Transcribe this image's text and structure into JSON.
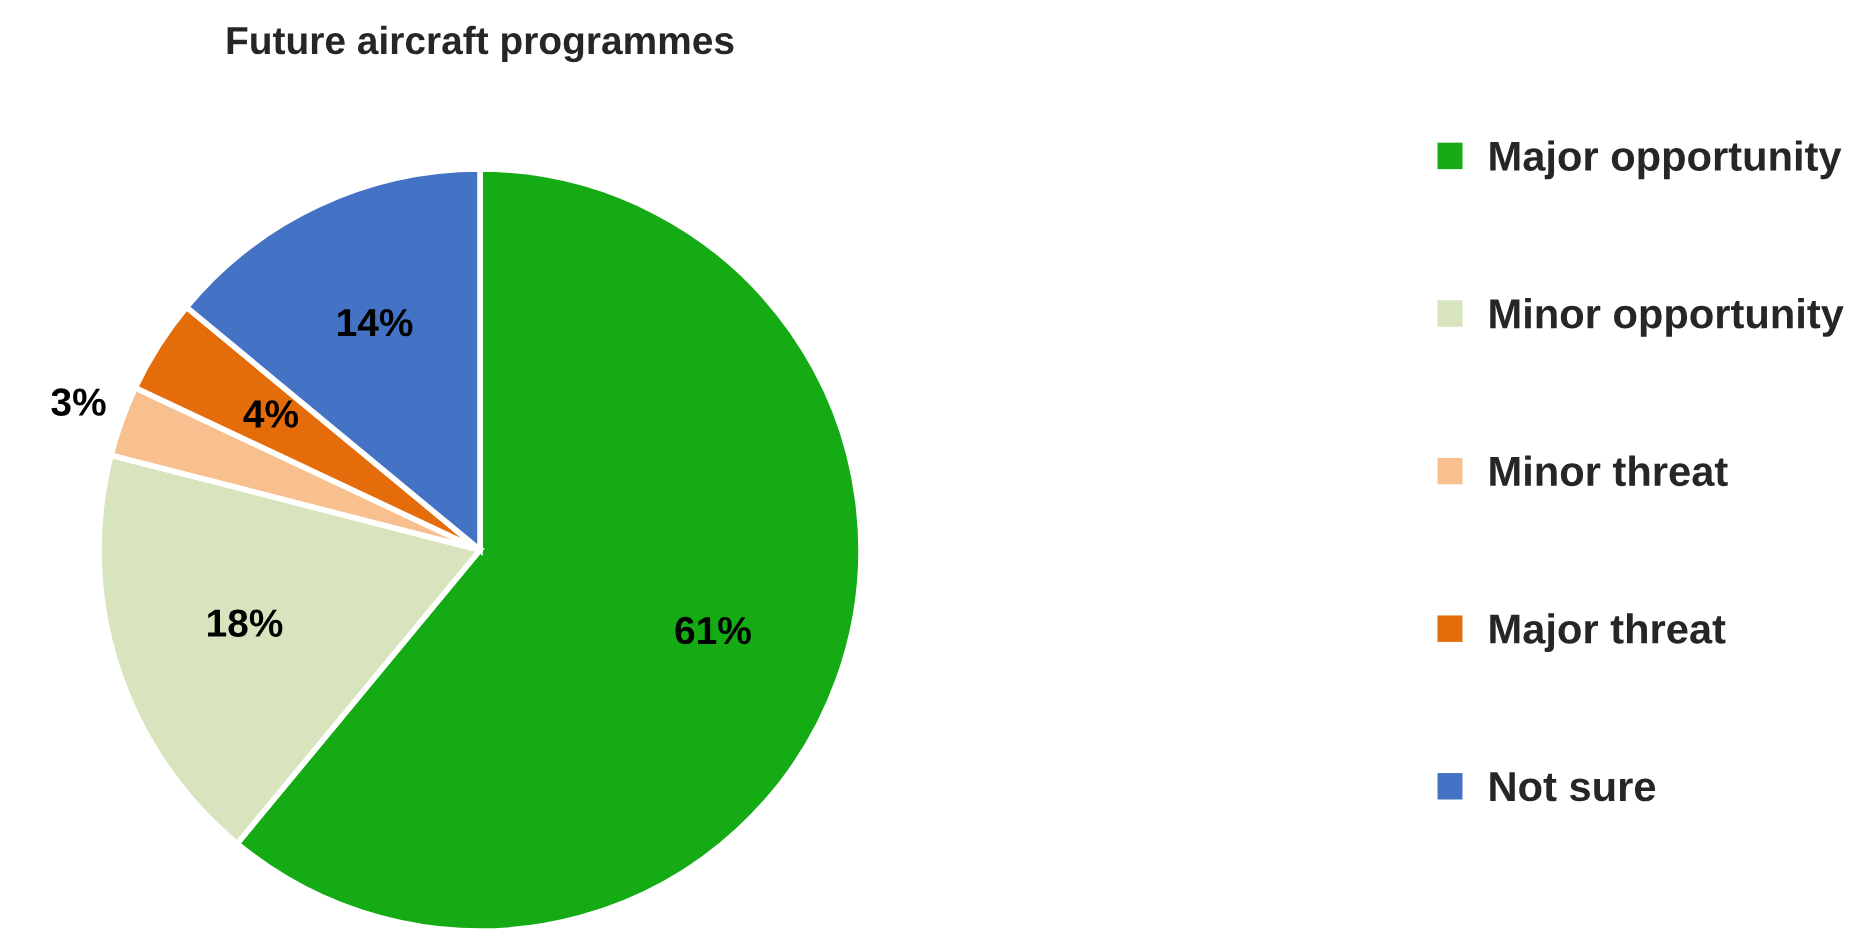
{
  "chart_data": {
    "type": "pie",
    "title": "Future aircraft programmes",
    "categories": [
      "Major opportunity",
      "Minor opportunity",
      "Minor threat",
      "Major threat",
      "Not sure"
    ],
    "values": [
      61,
      18,
      3,
      4,
      14
    ],
    "colors": [
      "#15ab15",
      "#d7e4bd",
      "#f9c08f",
      "#e46c0a",
      "#4472c4"
    ],
    "value_labels": [
      "61%",
      "18%",
      "3%",
      "4%",
      "14%"
    ],
    "legend": "right"
  }
}
